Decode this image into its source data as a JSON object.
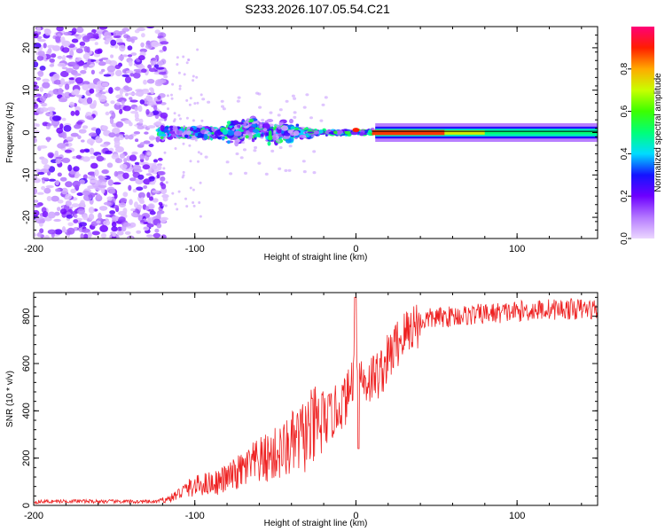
{
  "title": "S233.2026.107.05.54.C21",
  "chart_data": [
    {
      "type": "heatmap",
      "name": "spectrogram",
      "xlabel": "Height of straight line (km)",
      "ylabel": "Frequency (Hz)",
      "xlim": [
        -200,
        150
      ],
      "ylim": [
        -25,
        25
      ],
      "xticks": [
        -200,
        -100,
        0,
        100
      ],
      "yticks": [
        -20,
        -10,
        0,
        10,
        20
      ],
      "colorbar": {
        "label": "Normalized spectral amplitude",
        "range": [
          0,
          1
        ],
        "ticks": [
          "0.0",
          "0.2",
          "0.4",
          "0.6",
          "0.8"
        ]
      },
      "description_regions": [
        {
          "x_range": [
            -200,
            -120
          ],
          "frequency_spread": [
            -25,
            25
          ],
          "amplitude": 0.1
        },
        {
          "x_range": [
            -120,
            -30
          ],
          "frequency_spread": [
            -6,
            9
          ],
          "amplitude": 0.35
        },
        {
          "x_range": [
            -30,
            10
          ],
          "frequency_spread": [
            -2,
            2
          ],
          "amplitude": 0.5
        },
        {
          "x_range": [
            10,
            50
          ],
          "frequency_spread": [
            -0.5,
            0.5
          ],
          "amplitude": 1.0
        },
        {
          "x_range": [
            50,
            150
          ],
          "frequency_spread": [
            -2,
            2
          ],
          "amplitude": 0.5
        }
      ]
    },
    {
      "type": "line",
      "name": "snr",
      "xlabel": "Height of straight line (km)",
      "ylabel": "SNR (10 * v/v)",
      "xlim": [
        -200,
        150
      ],
      "ylim": [
        0,
        900
      ],
      "xticks": [
        -200,
        -100,
        0,
        100
      ],
      "yticks": [
        0,
        200,
        400,
        600,
        800
      ],
      "color": "#ee2222",
      "x": [
        -200,
        -180,
        -160,
        -140,
        -125,
        -115,
        -105,
        -95,
        -85,
        -75,
        -65,
        -55,
        -45,
        -35,
        -25,
        -15,
        -5,
        0,
        5,
        15,
        25,
        35,
        45,
        60,
        80,
        100,
        120,
        150
      ],
      "values": [
        15,
        18,
        17,
        16,
        15,
        30,
        70,
        90,
        100,
        130,
        170,
        200,
        230,
        280,
        330,
        380,
        460,
        600,
        520,
        560,
        680,
        760,
        790,
        800,
        810,
        820,
        830,
        830
      ]
    }
  ]
}
